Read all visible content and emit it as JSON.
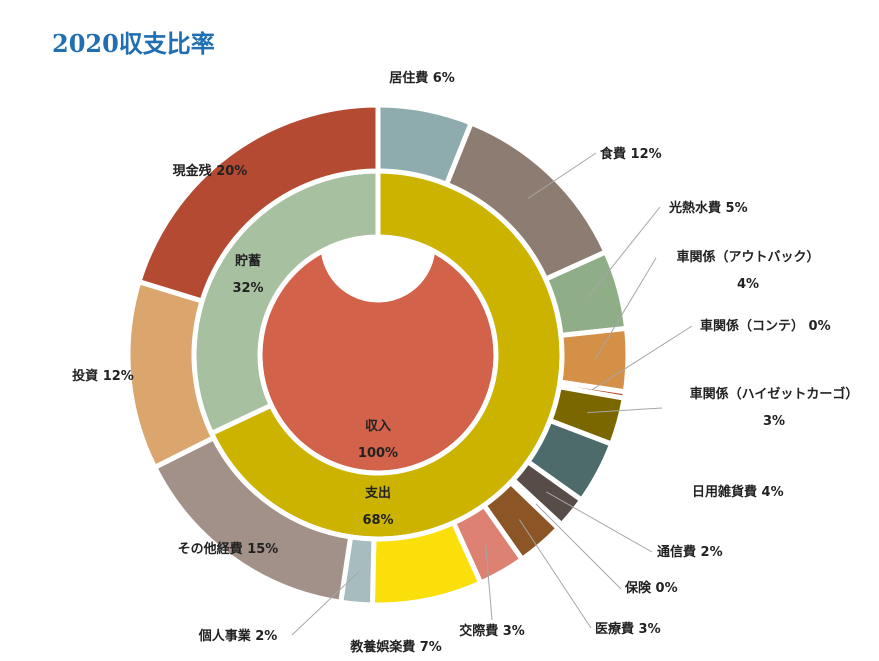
{
  "chart_data": {
    "type": "pie",
    "title": "2020収支比率",
    "rings": [
      {
        "level": "inner",
        "slices": [
          {
            "label": "収入",
            "value": 100,
            "pct": "100%",
            "color": "#d2624a"
          }
        ]
      },
      {
        "level": "middle",
        "slices": [
          {
            "label": "支出",
            "value": 68,
            "pct": "68%",
            "color": "#cbb300"
          },
          {
            "label": "貯蓄",
            "value": 32,
            "pct": "32%",
            "color": "#a7c0a0"
          }
        ]
      },
      {
        "level": "outer",
        "slices": [
          {
            "label": "居住費",
            "value": 6,
            "pct": "6%",
            "color": "#8eacad"
          },
          {
            "label": "食費",
            "value": 12,
            "pct": "12%",
            "color": "#8c7c71"
          },
          {
            "label": "光熱水費",
            "value": 5,
            "pct": "5%",
            "color": "#8fae88"
          },
          {
            "label": "車関係（アウトバック）",
            "value": 4,
            "pct": "4%",
            "color": "#d59048"
          },
          {
            "label": "車関係（コンテ）",
            "value": 0.4,
            "pct": "0%",
            "color": "#b5462b"
          },
          {
            "label": "車関係（ハイゼットカーゴ）",
            "value": 3,
            "pct": "3%",
            "color": "#7b6700"
          },
          {
            "label": "日用雑貨費",
            "value": 4,
            "pct": "4%",
            "color": "#4e6b6b"
          },
          {
            "label": "通信費",
            "value": 2,
            "pct": "2%",
            "color": "#574c47"
          },
          {
            "label": "保険",
            "value": 0.3,
            "pct": "0%",
            "color": "#7c5e1e"
          },
          {
            "label": "医療費",
            "value": 3,
            "pct": "3%",
            "color": "#8c5526"
          },
          {
            "label": "交際費",
            "value": 3,
            "pct": "3%",
            "color": "#dd8172"
          },
          {
            "label": "教養娯楽費",
            "value": 7,
            "pct": "7%",
            "color": "#fbdf0b"
          },
          {
            "label": "個人事業",
            "value": 2,
            "pct": "2%",
            "color": "#a7bcbe"
          },
          {
            "label": "その他経費",
            "value": 15,
            "pct": "15%",
            "color": "#a29188"
          },
          {
            "label": "投資",
            "value": 12,
            "pct": "12%",
            "color": "#dba56e"
          },
          {
            "label": "現金残",
            "value": 20,
            "pct": "20%",
            "color": "#b34a31"
          }
        ]
      }
    ],
    "legend": "none",
    "grid": false
  }
}
